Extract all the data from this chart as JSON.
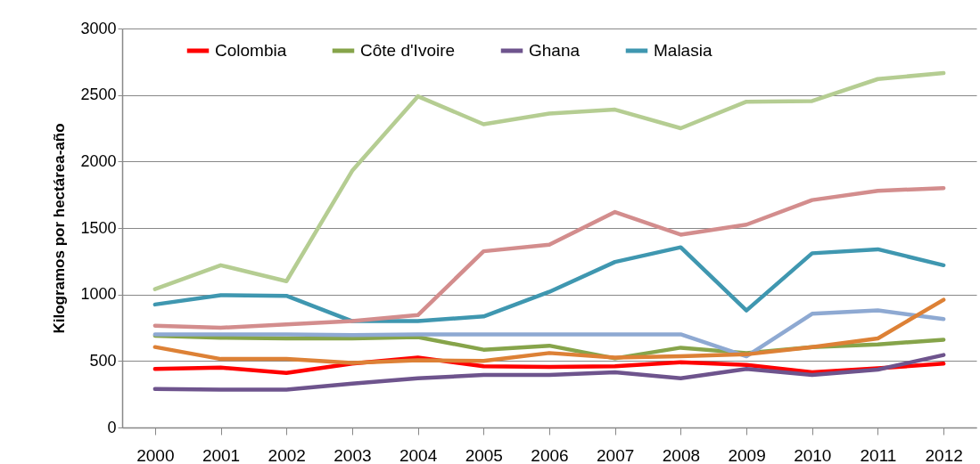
{
  "chart_data": {
    "type": "line",
    "ylabel": "Kilogramos por hectárea-año",
    "categories": [
      "2000",
      "2001",
      "2002",
      "2003",
      "2004",
      "2005",
      "2006",
      "2007",
      "2008",
      "2009",
      "2010",
      "2011",
      "2012"
    ],
    "ylim": [
      0,
      3000
    ],
    "yticks": [
      0,
      500,
      1000,
      1500,
      2000,
      2500,
      3000
    ],
    "grid": "y",
    "legend": "top",
    "series": [
      {
        "name": "Colombia",
        "color": "#ff0000",
        "values": [
          440,
          450,
          410,
          480,
          525,
          460,
          455,
          460,
          490,
          470,
          415,
          445,
          480
        ]
      },
      {
        "name": "Côte d'Ivoire",
        "color": "#86a44a",
        "values": [
          690,
          675,
          670,
          670,
          680,
          585,
          615,
          520,
          600,
          560,
          605,
          625,
          660
        ]
      },
      {
        "name": "Ghana",
        "color": "#6e548d",
        "values": [
          290,
          285,
          285,
          330,
          370,
          395,
          395,
          415,
          370,
          440,
          395,
          435,
          545
        ]
      },
      {
        "name": "Malasia",
        "color": "#3f97b0",
        "values": [
          925,
          995,
          990,
          800,
          800,
          835,
          1020,
          1245,
          1355,
          880,
          1310,
          1340,
          1220
        ]
      },
      {
        "color": "#b5cd92",
        "values": [
          1040,
          1220,
          1100,
          1930,
          2490,
          2280,
          2360,
          2390,
          2250,
          2450,
          2455,
          2620,
          2665
        ]
      },
      {
        "color": "#d38d8d",
        "values": [
          765,
          750,
          775,
          800,
          845,
          1325,
          1375,
          1620,
          1450,
          1525,
          1710,
          1780,
          1800
        ]
      },
      {
        "color": "#8ea9d2",
        "values": [
          700,
          700,
          700,
          695,
          700,
          700,
          700,
          700,
          700,
          535,
          855,
          880,
          815
        ]
      },
      {
        "color": "#dd8136",
        "values": [
          605,
          515,
          515,
          485,
          505,
          500,
          560,
          525,
          535,
          550,
          605,
          670,
          960
        ]
      }
    ]
  }
}
